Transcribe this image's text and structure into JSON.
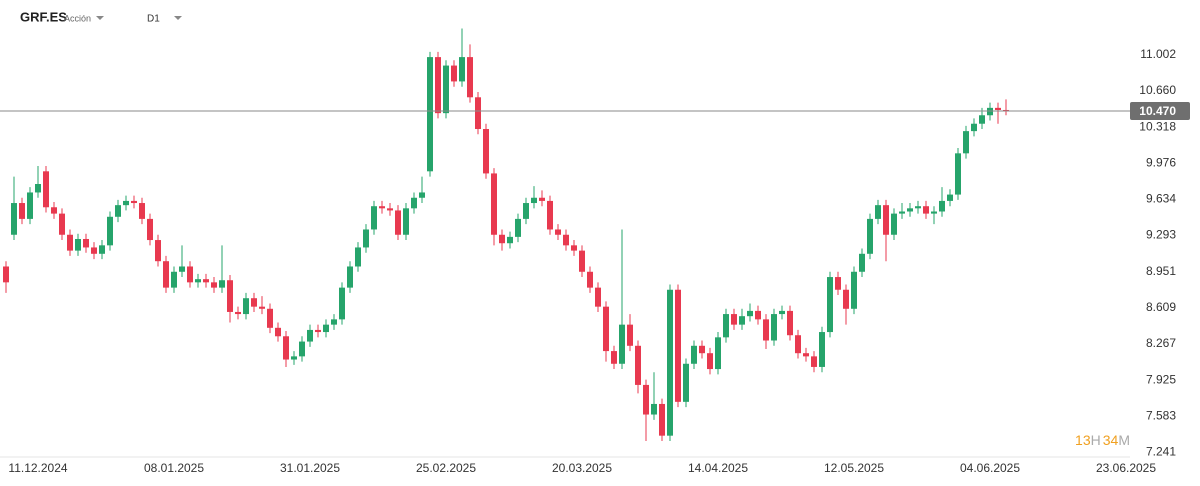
{
  "header": {
    "symbol": "GRF.ES",
    "kind": "Acción",
    "timeframe": "D1"
  },
  "timer": [
    "13",
    "H",
    "34",
    "M"
  ],
  "chart_data": {
    "type": "candlestick",
    "up_color": "#26a46b",
    "down_color": "#e8394f",
    "last_price": {
      "value": 10.47,
      "label": "10.470"
    },
    "ylim": [
      7.17,
      11.52
    ],
    "yticks": [
      11.002,
      {
        "value": 10.66,
        "label": "10.660"
      },
      10.318,
      9.976,
      9.634,
      9.293,
      8.951,
      8.609,
      8.267,
      7.925,
      7.583,
      7.241
    ],
    "grid": false,
    "categories": [
      null,
      null,
      null,
      null,
      "11.12.2024",
      null,
      null,
      null,
      null,
      null,
      null,
      null,
      null,
      null,
      null,
      null,
      null,
      null,
      null,
      null,
      null,
      "08.01.2025",
      null,
      null,
      null,
      null,
      null,
      null,
      null,
      null,
      null,
      null,
      null,
      null,
      null,
      null,
      null,
      null,
      "31.01.2025",
      null,
      null,
      null,
      null,
      null,
      null,
      null,
      null,
      null,
      null,
      null,
      null,
      null,
      null,
      null,
      null,
      "25.02.2025",
      null,
      null,
      null,
      null,
      null,
      null,
      null,
      null,
      null,
      null,
      null,
      null,
      null,
      null,
      null,
      null,
      "20.03.2025",
      null,
      null,
      null,
      null,
      null,
      null,
      null,
      null,
      null,
      null,
      null,
      null,
      null,
      null,
      null,
      null,
      "14.04.2025",
      null,
      null,
      null,
      null,
      null,
      null,
      null,
      null,
      null,
      null,
      null,
      null,
      null,
      null,
      null,
      null,
      "12.05.2025",
      null,
      null,
      null,
      null,
      null,
      null,
      null,
      null,
      null,
      null,
      null,
      null,
      null,
      null,
      null,
      null,
      "04.06.2025",
      null,
      null,
      null,
      null,
      null,
      null,
      null,
      null,
      null,
      null,
      null,
      null,
      null,
      null,
      null,
      null,
      "23.06.2025"
    ],
    "candles": [
      [
        9.0,
        9.05,
        8.75,
        8.85
      ],
      [
        9.3,
        9.85,
        9.25,
        9.6
      ],
      [
        9.6,
        9.65,
        9.4,
        9.45
      ],
      [
        9.45,
        9.75,
        9.4,
        9.7
      ],
      [
        9.7,
        9.95,
        9.65,
        9.78
      ],
      [
        9.9,
        9.95,
        9.51,
        9.56
      ],
      [
        9.56,
        9.61,
        9.45,
        9.5
      ],
      [
        9.5,
        9.55,
        9.25,
        9.3
      ],
      [
        9.3,
        9.35,
        9.1,
        9.15
      ],
      [
        9.15,
        9.31,
        9.1,
        9.26
      ],
      [
        9.26,
        9.31,
        9.13,
        9.18
      ],
      [
        9.18,
        9.23,
        9.07,
        9.12
      ],
      [
        9.12,
        9.25,
        9.07,
        9.2
      ],
      [
        9.2,
        9.52,
        9.15,
        9.47
      ],
      [
        9.47,
        9.63,
        9.42,
        9.58
      ],
      [
        9.58,
        9.67,
        9.53,
        9.62
      ],
      [
        9.62,
        9.67,
        9.55,
        9.6
      ],
      [
        9.6,
        9.65,
        9.4,
        9.45
      ],
      [
        9.45,
        9.5,
        9.2,
        9.25
      ],
      [
        9.25,
        9.3,
        9.0,
        9.05
      ],
      [
        9.05,
        9.1,
        8.75,
        8.8
      ],
      [
        8.8,
        9.0,
        8.75,
        8.95
      ],
      [
        8.95,
        9.2,
        8.9,
        9.0
      ],
      [
        9.0,
        9.05,
        8.8,
        8.85
      ],
      [
        8.85,
        8.93,
        8.8,
        8.88
      ],
      [
        8.88,
        8.93,
        8.8,
        8.85
      ],
      [
        8.85,
        8.9,
        8.75,
        8.8
      ],
      [
        8.8,
        9.2,
        8.75,
        8.87
      ],
      [
        8.87,
        8.92,
        8.47,
        8.57
      ],
      [
        8.57,
        8.62,
        8.5,
        8.55
      ],
      [
        8.55,
        8.75,
        8.5,
        8.7
      ],
      [
        8.7,
        8.75,
        8.57,
        8.62
      ],
      [
        8.62,
        8.72,
        8.55,
        8.6
      ],
      [
        8.6,
        8.65,
        8.37,
        8.42
      ],
      [
        8.42,
        8.47,
        8.29,
        8.34
      ],
      [
        8.34,
        8.39,
        8.05,
        8.12
      ],
      [
        8.12,
        8.2,
        8.07,
        8.15
      ],
      [
        8.15,
        8.34,
        8.1,
        8.29
      ],
      [
        8.29,
        8.45,
        8.24,
        8.4
      ],
      [
        8.4,
        8.45,
        8.33,
        8.38
      ],
      [
        8.38,
        8.5,
        8.33,
        8.45
      ],
      [
        8.45,
        8.55,
        8.4,
        8.5
      ],
      [
        8.5,
        8.85,
        8.45,
        8.8
      ],
      [
        8.8,
        9.05,
        8.75,
        9.0
      ],
      [
        9.0,
        9.23,
        8.95,
        9.18
      ],
      [
        9.18,
        9.4,
        9.13,
        9.35
      ],
      [
        9.35,
        9.62,
        9.3,
        9.57
      ],
      [
        9.57,
        9.62,
        9.5,
        9.55
      ],
      [
        9.55,
        9.6,
        9.48,
        9.53
      ],
      [
        9.53,
        9.58,
        9.25,
        9.3
      ],
      [
        9.3,
        9.6,
        9.25,
        9.55
      ],
      [
        9.55,
        9.7,
        9.5,
        9.65
      ],
      [
        9.65,
        9.85,
        9.6,
        9.7
      ],
      [
        9.9,
        11.03,
        9.85,
        10.98
      ],
      [
        10.98,
        11.03,
        10.4,
        10.45
      ],
      [
        10.45,
        10.95,
        10.4,
        10.9
      ],
      [
        10.9,
        10.95,
        10.7,
        10.75
      ],
      [
        10.75,
        11.25,
        10.7,
        10.98
      ],
      [
        10.98,
        11.1,
        10.55,
        10.6
      ],
      [
        10.6,
        10.65,
        10.25,
        10.3
      ],
      [
        10.3,
        10.35,
        9.83,
        9.88
      ],
      [
        9.88,
        9.93,
        9.2,
        9.3
      ],
      [
        9.3,
        9.35,
        9.15,
        9.22
      ],
      [
        9.22,
        9.33,
        9.17,
        9.28
      ],
      [
        9.28,
        9.5,
        9.23,
        9.45
      ],
      [
        9.45,
        9.65,
        9.4,
        9.6
      ],
      [
        9.6,
        9.76,
        9.55,
        9.65
      ],
      [
        9.65,
        9.72,
        9.57,
        9.62
      ],
      [
        9.62,
        9.67,
        9.3,
        9.35
      ],
      [
        9.35,
        9.4,
        9.25,
        9.3
      ],
      [
        9.3,
        9.35,
        9.15,
        9.2
      ],
      [
        9.2,
        9.25,
        9.1,
        9.15
      ],
      [
        9.15,
        9.2,
        8.9,
        8.95
      ],
      [
        8.95,
        9.0,
        8.75,
        8.8
      ],
      [
        8.8,
        8.85,
        8.57,
        8.62
      ],
      [
        8.62,
        8.67,
        8.1,
        8.2
      ],
      [
        8.2,
        8.25,
        8.03,
        8.08
      ],
      [
        8.08,
        9.35,
        8.03,
        8.45
      ],
      [
        8.45,
        8.55,
        8.2,
        8.25
      ],
      [
        8.25,
        8.3,
        7.8,
        7.88
      ],
      [
        7.88,
        7.93,
        7.35,
        7.6
      ],
      [
        7.6,
        8.0,
        7.55,
        7.7
      ],
      [
        7.7,
        7.75,
        7.35,
        7.4
      ],
      [
        7.4,
        8.83,
        7.35,
        8.78
      ],
      [
        8.78,
        8.83,
        7.67,
        7.72
      ],
      [
        7.72,
        8.13,
        7.67,
        8.08
      ],
      [
        8.08,
        8.3,
        8.03,
        8.25
      ],
      [
        8.25,
        8.3,
        8.13,
        8.18
      ],
      [
        8.18,
        8.23,
        7.98,
        8.03
      ],
      [
        8.03,
        8.38,
        7.98,
        8.33
      ],
      [
        8.33,
        8.6,
        8.28,
        8.55
      ],
      [
        8.55,
        8.6,
        8.4,
        8.45
      ],
      [
        8.45,
        8.6,
        8.4,
        8.53
      ],
      [
        8.53,
        8.65,
        8.48,
        8.58
      ],
      [
        8.58,
        8.63,
        8.45,
        8.5
      ],
      [
        8.5,
        8.55,
        8.22,
        8.3
      ],
      [
        8.3,
        8.6,
        8.25,
        8.55
      ],
      [
        8.55,
        8.63,
        8.5,
        8.58
      ],
      [
        8.58,
        8.63,
        8.3,
        8.35
      ],
      [
        8.35,
        8.4,
        8.13,
        8.18
      ],
      [
        8.18,
        8.23,
        8.1,
        8.15
      ],
      [
        8.15,
        8.2,
        8.0,
        8.05
      ],
      [
        8.05,
        8.43,
        8.0,
        8.38
      ],
      [
        8.38,
        8.95,
        8.33,
        8.9
      ],
      [
        8.9,
        8.95,
        8.73,
        8.78
      ],
      [
        8.78,
        8.83,
        8.45,
        8.6
      ],
      [
        8.6,
        9.0,
        8.55,
        8.95
      ],
      [
        8.95,
        9.17,
        8.9,
        9.12
      ],
      [
        9.12,
        9.5,
        9.07,
        9.45
      ],
      [
        9.45,
        9.63,
        9.4,
        9.58
      ],
      [
        9.58,
        9.63,
        9.05,
        9.3
      ],
      [
        9.3,
        9.55,
        9.25,
        9.5
      ],
      [
        9.5,
        9.6,
        9.45,
        9.52
      ],
      [
        9.52,
        9.6,
        9.47,
        9.55
      ],
      [
        9.55,
        9.62,
        9.5,
        9.57
      ],
      [
        9.57,
        9.62,
        9.45,
        9.5
      ],
      [
        9.5,
        9.57,
        9.4,
        9.52
      ],
      [
        9.52,
        9.75,
        9.47,
        9.62
      ],
      [
        9.62,
        9.73,
        9.57,
        9.68
      ],
      [
        9.68,
        10.12,
        9.63,
        10.07
      ],
      [
        10.07,
        10.33,
        10.02,
        10.28
      ],
      [
        10.28,
        10.4,
        10.23,
        10.35
      ],
      [
        10.35,
        10.5,
        10.3,
        10.43
      ],
      [
        10.43,
        10.55,
        10.38,
        10.5
      ],
      [
        10.5,
        10.55,
        10.35,
        10.48
      ],
      [
        10.48,
        10.58,
        10.43,
        10.47
      ],
      null,
      null,
      null,
      null,
      null,
      null,
      null,
      null,
      null,
      null,
      null,
      null,
      null,
      null,
      null
    ]
  }
}
